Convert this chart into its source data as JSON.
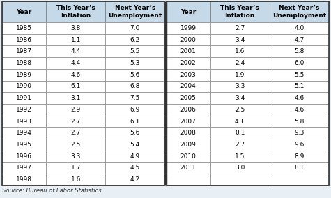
{
  "left_table": {
    "years": [
      "1985",
      "1986",
      "1987",
      "1988",
      "1989",
      "1990",
      "1991",
      "1992",
      "1993",
      "1994",
      "1995",
      "1996",
      "1997",
      "1998"
    ],
    "inflation": [
      "3.8",
      "1.1",
      "4.4",
      "4.4",
      "4.6",
      "6.1",
      "3.1",
      "2.9",
      "2.7",
      "2.7",
      "2.5",
      "3.3",
      "1.7",
      "1.6"
    ],
    "unemployment": [
      "7.0",
      "6.2",
      "5.5",
      "5.3",
      "5.6",
      "6.8",
      "7.5",
      "6.9",
      "6.1",
      "5.6",
      "5.4",
      "4.9",
      "4.5",
      "4.2"
    ]
  },
  "right_table": {
    "years": [
      "1999",
      "2000",
      "2001",
      "2002",
      "2003",
      "2004",
      "2005",
      "2006",
      "2007",
      "2008",
      "2009",
      "2010",
      "2011",
      ""
    ],
    "inflation": [
      "2.7",
      "3.4",
      "1.6",
      "2.4",
      "1.9",
      "3.3",
      "3.4",
      "2.5",
      "4.1",
      "0.1",
      "2.7",
      "1.5",
      "3.0",
      ""
    ],
    "unemployment": [
      "4.0",
      "4.7",
      "5.8",
      "6.0",
      "5.5",
      "5.1",
      "4.6",
      "4.6",
      "5.8",
      "9.3",
      "9.6",
      "8.9",
      "8.1",
      ""
    ]
  },
  "header_bg": "#c5d9e8",
  "outer_bg": "#e8f0f5",
  "border_color": "#888888",
  "thick_border_color": "#333333",
  "header_text_color": "#000000",
  "data_text_color": "#000000",
  "source_text": "Source: Bureau of Labor Statistics",
  "col_headers": [
    "Year",
    "This Year’s\nInflation",
    "Next Year’s\nUnemployment"
  ],
  "figsize": [
    4.75,
    2.84
  ],
  "dpi": 100
}
